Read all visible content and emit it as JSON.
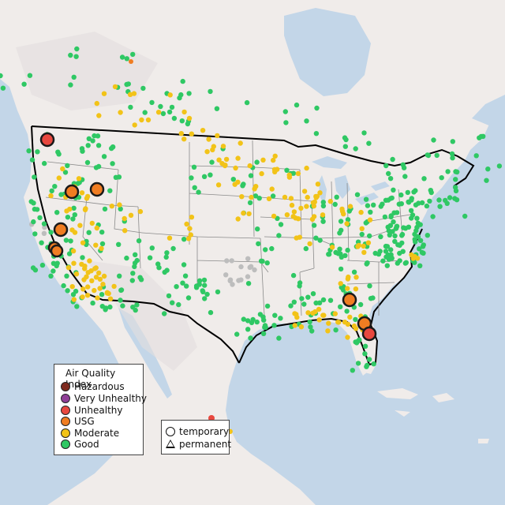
{
  "legend": {
    "title": "Air Quality Index",
    "categories": [
      {
        "label": "Hazardous",
        "color": "#7e2a1f"
      },
      {
        "label": "Very Unhealthy",
        "color": "#8f3f97"
      },
      {
        "label": "Unhealthy",
        "color": "#e8483f"
      },
      {
        "label": "USG",
        "color": "#f07d22"
      },
      {
        "label": "Moderate",
        "color": "#f2c318"
      },
      {
        "label": "Good",
        "color": "#2fc864"
      }
    ]
  },
  "monitor_types": {
    "temporary": "temporary",
    "permanent": "permanent"
  },
  "colors": {
    "water": "#c3d6e8",
    "land": "#f0ecea",
    "no_data": "#bdbdbd",
    "border": "#000000"
  }
}
